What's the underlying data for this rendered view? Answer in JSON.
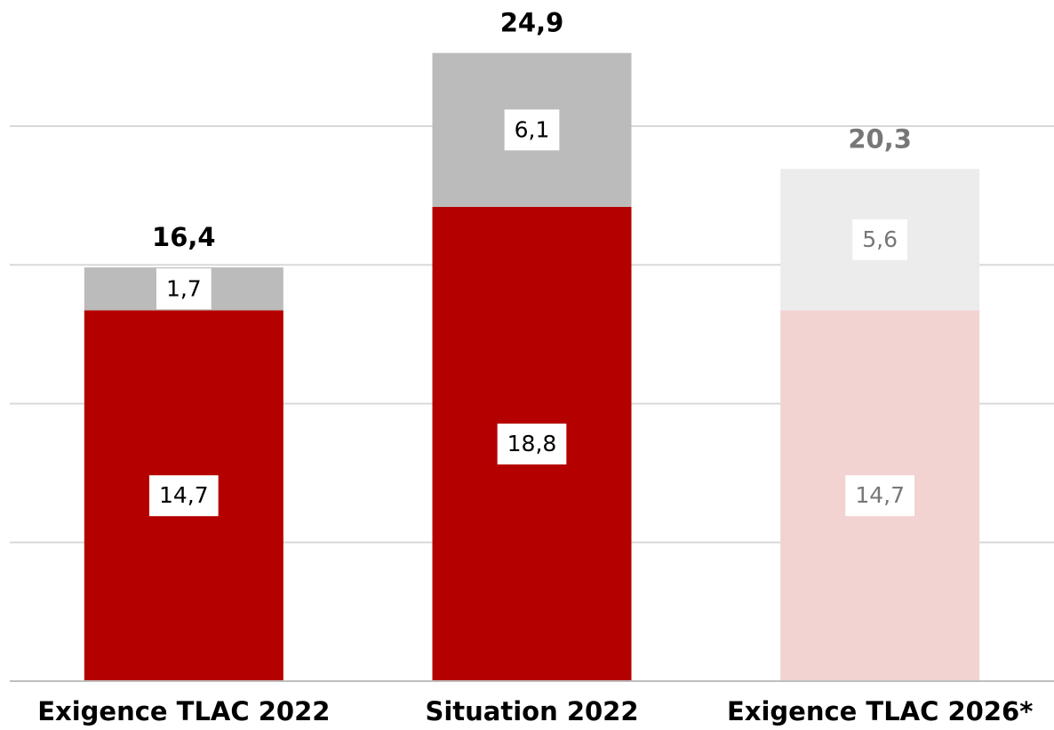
{
  "chart_data": {
    "type": "stacked_bar",
    "categories": [
      "Exigence TLAC 2022",
      "Situation 2022",
      "Exigence TLAC 2026*"
    ],
    "series": [
      {
        "colors": [
          "#b50000",
          "#b50000",
          "#f3d3d1"
        ],
        "values": [
          14.7,
          18.8,
          14.7
        ],
        "value_labels": [
          "14,7",
          "18,8",
          "14,7"
        ]
      },
      {
        "colors": [
          "#bbbbbb",
          "#bbbbbb",
          "#ececec"
        ],
        "values": [
          1.7,
          6.1,
          5.6
        ],
        "value_labels": [
          "1,7",
          "6,1",
          "5,6"
        ]
      }
    ],
    "label_colors": [
      "#000000",
      "#000000",
      "#777777"
    ],
    "totals": [
      16.4,
      24.9,
      20.3
    ],
    "total_labels": [
      "16,4",
      "24,9",
      "20,3"
    ],
    "ylim": [
      0,
      27
    ],
    "yticks": [
      0,
      5.5,
      11,
      16.5,
      22
    ],
    "grid": true
  }
}
